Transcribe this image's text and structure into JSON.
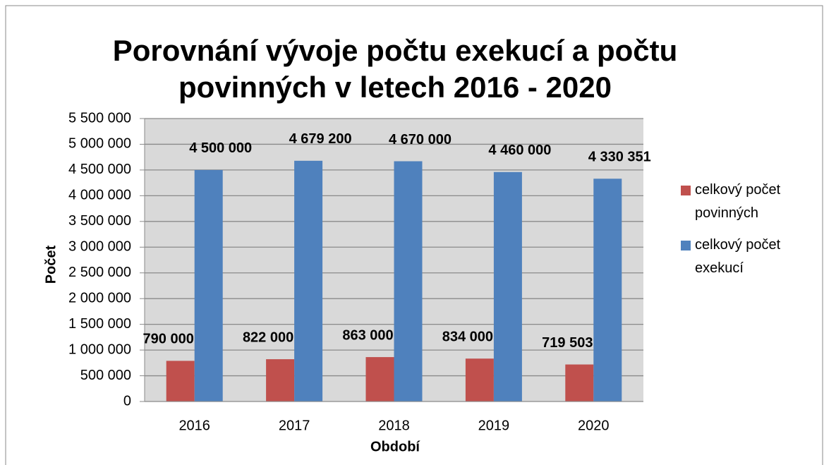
{
  "chart_data": {
    "type": "bar",
    "title": "Porovnání vývoje počtu exekucí a počtu povinných v letech 2016 - 2020",
    "x_label": "Období",
    "y_label": "Počet",
    "categories": [
      "2016",
      "2017",
      "2018",
      "2019",
      "2020"
    ],
    "series": [
      {
        "name": "celkový počet povinných",
        "color": "#c0504d",
        "values": [
          790000,
          822000,
          863000,
          834000,
          719503
        ],
        "value_labels": [
          "790 000",
          "822 000",
          "863 000",
          "834 000",
          "719 503"
        ]
      },
      {
        "name": "celkový počet exekucí",
        "color": "#4f81bd",
        "values": [
          4500000,
          4679200,
          4670000,
          4460000,
          4330351
        ],
        "value_labels": [
          "4 500 000",
          "4 679 200",
          "4 670 000",
          "4 460 000",
          "4 330 351"
        ]
      }
    ],
    "ylim": [
      0,
      5500000
    ],
    "yticks": [
      0,
      {
        "value": 500000,
        "label": "500 000"
      },
      {
        "value": 1000000,
        "label": "1 000 000"
      },
      {
        "value": 1500000,
        "label": "1 500 000"
      },
      {
        "value": 2000000,
        "label": "2 000 000"
      },
      {
        "value": 2500000,
        "label": "2 500 000"
      },
      {
        "value": 3000000,
        "label": "3 000 000"
      },
      {
        "value": 3500000,
        "label": "3 500 000"
      },
      {
        "value": 4000000,
        "label": "4 000 000"
      },
      {
        "value": 4500000,
        "label": "4 500 000"
      },
      {
        "value": 5000000,
        "label": "5 000 000"
      },
      {
        "value": 5500000,
        "label": "5 500 000"
      }
    ],
    "grid": true,
    "legend": "right"
  }
}
